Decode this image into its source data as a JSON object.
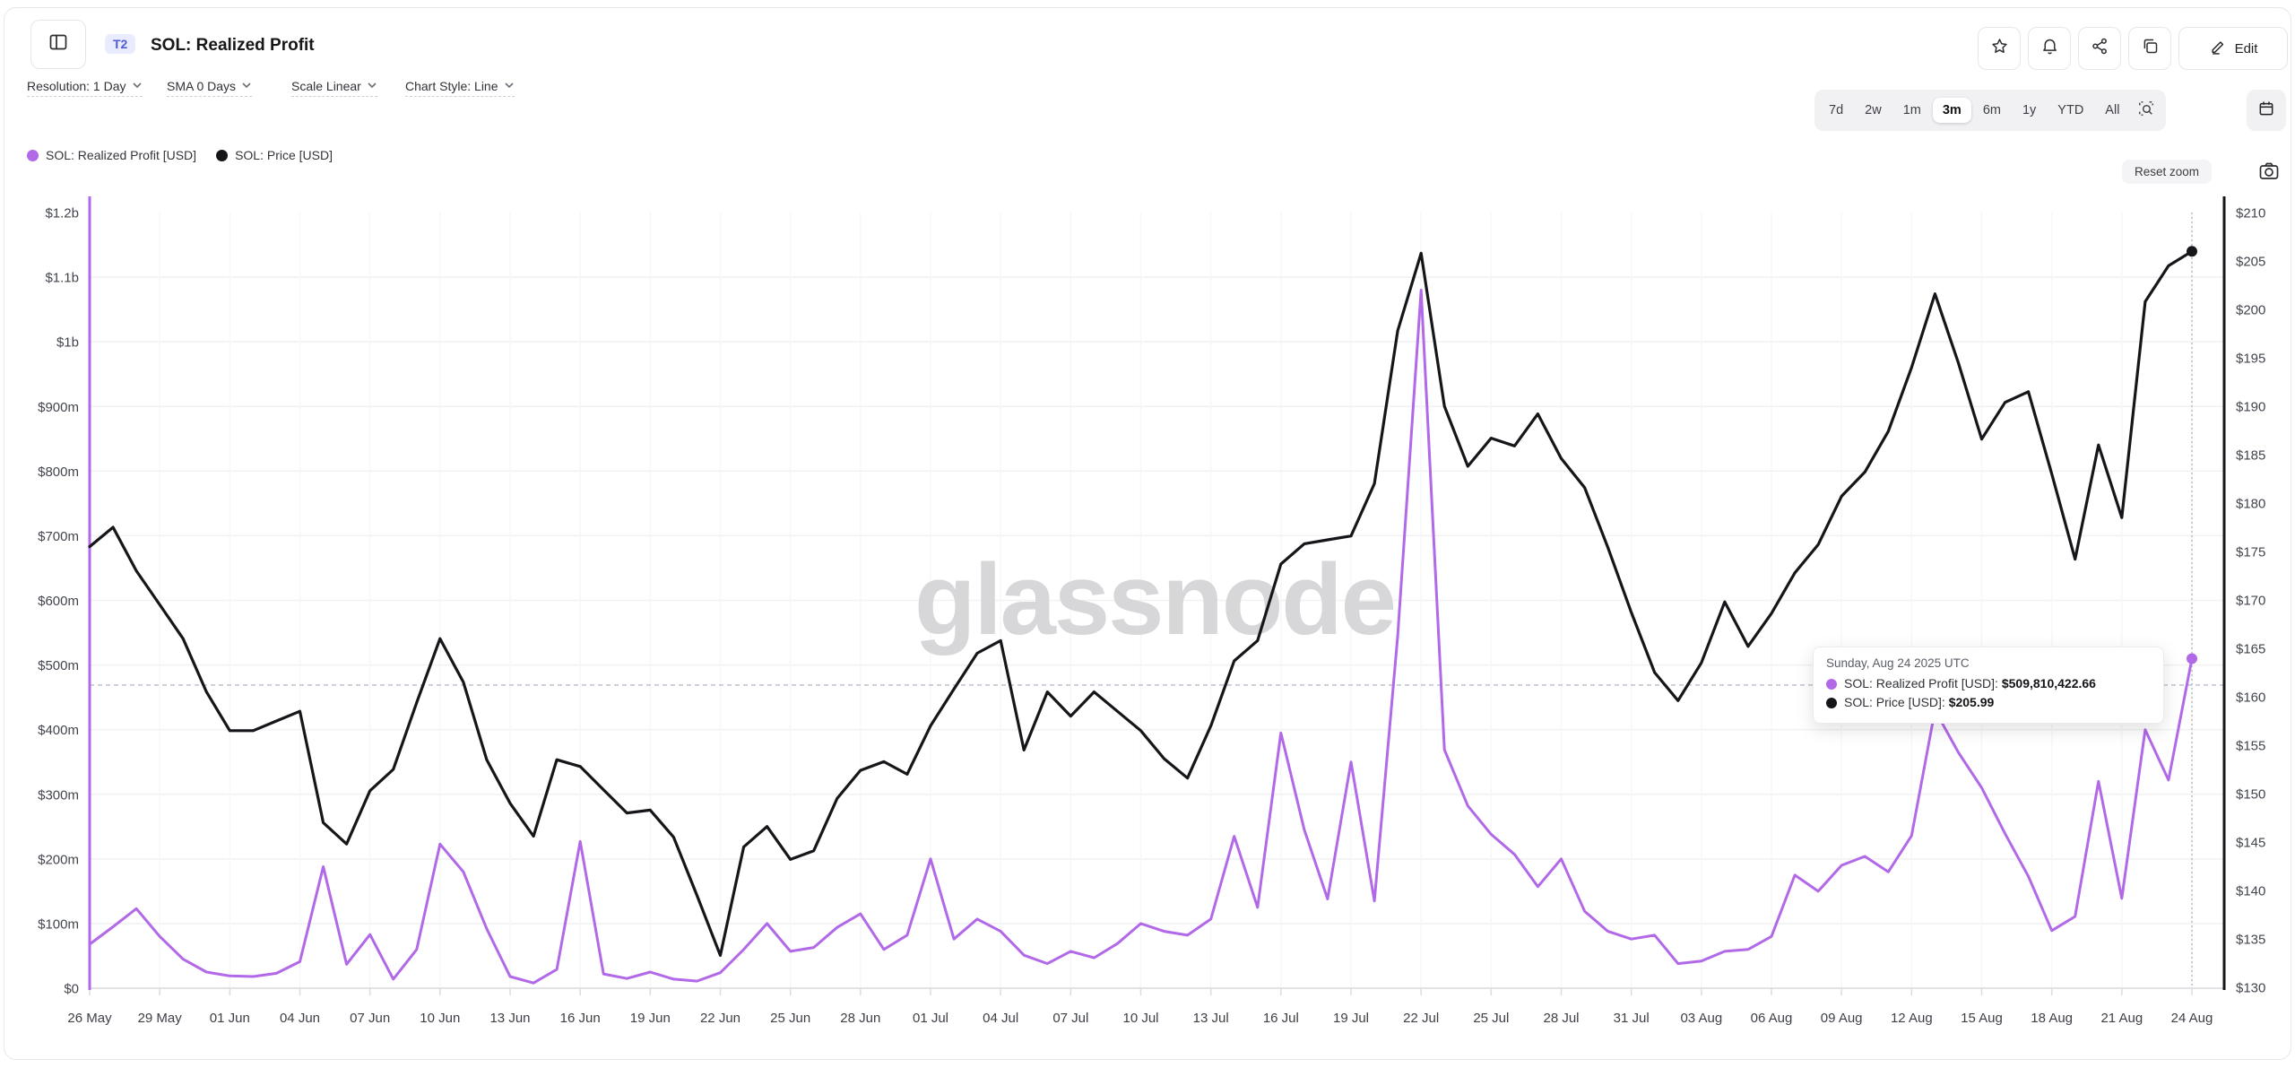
{
  "header": {
    "badge": "T2",
    "title": "SOL: Realized Profit",
    "edit_label": "Edit"
  },
  "controls": {
    "resolution": "Resolution: 1 Day",
    "sma": "SMA 0 Days",
    "scale": "Scale Linear",
    "chart_style": "Chart Style: Line"
  },
  "ranges": {
    "options": [
      "7d",
      "2w",
      "1m",
      "3m",
      "6m",
      "1y",
      "YTD",
      "All"
    ],
    "active": "3m"
  },
  "reset_zoom_label": "Reset zoom",
  "legend": [
    {
      "label": "SOL: Realized Profit [USD]",
      "color": "#b169e8"
    },
    {
      "label": "SOL: Price [USD]",
      "color": "#16161a"
    }
  ],
  "tooltip": {
    "date": "Sunday, Aug 24 2025 UTC",
    "rows": [
      {
        "label": "SOL: Realized Profit [USD]:",
        "value": "$509,810,422.66",
        "color": "#b169e8"
      },
      {
        "label": "SOL: Price [USD]:",
        "value": "$205.99",
        "color": "#16161a"
      }
    ]
  },
  "chart_data": {
    "type": "line",
    "title": "SOL: Realized Profit",
    "x_tick_interval_days": 3,
    "x_tick_labels": [
      "26 May",
      "29 May",
      "01 Jun",
      "04 Jun",
      "07 Jun",
      "10 Jun",
      "13 Jun",
      "16 Jun",
      "19 Jun",
      "22 Jun",
      "25 Jun",
      "28 Jun",
      "01 Jul",
      "04 Jul",
      "07 Jul",
      "10 Jul",
      "13 Jul",
      "16 Jul",
      "19 Jul",
      "22 Jul",
      "25 Jul",
      "28 Jul",
      "31 Jul",
      "03 Aug",
      "06 Aug",
      "09 Aug",
      "12 Aug",
      "15 Aug",
      "18 Aug",
      "21 Aug",
      "24 Aug"
    ],
    "y_left": {
      "label": "SOL: Realized Profit [USD]",
      "tick_labels": [
        "$1.2b",
        "$1.1b",
        "$1b",
        "$900m",
        "$800m",
        "$700m",
        "$600m",
        "$500m",
        "$400m",
        "$300m",
        "$200m",
        "$100m",
        "$0"
      ],
      "min_m": 0,
      "max_m": 1200
    },
    "y_right": {
      "label": "SOL: Price [USD]",
      "tick_labels": [
        "$210",
        "$205",
        "$200",
        "$195",
        "$190",
        "$185",
        "$180",
        "$175",
        "$170",
        "$165",
        "$160",
        "$155",
        "$150",
        "$145",
        "$140",
        "$135",
        "$130"
      ],
      "min": 130,
      "max": 210
    },
    "series": [
      {
        "name": "SOL: Realized Profit [USD]",
        "axis": "left",
        "color": "#b169e8",
        "unit": "USD millions",
        "values": [
          68,
          95,
          123,
          80,
          45,
          25,
          19,
          18,
          23,
          41,
          188,
          37,
          83,
          14,
          60,
          223,
          180,
          92,
          18,
          8,
          29,
          227,
          22,
          15,
          25,
          14,
          11,
          24,
          60,
          100,
          57,
          63,
          94,
          115,
          60,
          82,
          200,
          76,
          107,
          88,
          51,
          38,
          57,
          47,
          69,
          100,
          88,
          82,
          107,
          235,
          125,
          395,
          245,
          138,
          350,
          135,
          545,
          1080,
          369,
          282,
          238,
          207,
          157,
          200,
          119,
          88,
          76,
          82,
          38,
          42,
          57,
          60,
          80,
          175,
          150,
          190,
          204,
          180,
          236,
          430,
          365,
          310,
          239,
          173,
          89,
          111,
          320,
          139,
          400,
          322,
          509.81
        ]
      },
      {
        "name": "SOL: Price [USD]",
        "axis": "right",
        "color": "#16161a",
        "unit": "USD",
        "values": [
          175.5,
          177.5,
          173,
          169.5,
          166,
          160.5,
          156.5,
          156.5,
          157.5,
          158.5,
          147,
          144.8,
          150.3,
          152.5,
          159.4,
          166,
          161.5,
          153.5,
          149,
          145.6,
          153.5,
          152.8,
          150.4,
          148,
          148.3,
          145.5,
          139.5,
          133.3,
          144.5,
          146.6,
          143.2,
          144.1,
          149.5,
          152.4,
          153.3,
          152,
          157,
          160.8,
          164.5,
          165.8,
          154.5,
          160.5,
          158,
          160.5,
          158.5,
          156.5,
          153.6,
          151.6,
          157,
          163.7,
          165.8,
          173.7,
          175.8,
          176.2,
          176.6,
          182,
          197.8,
          205.8,
          190,
          183.8,
          186.7,
          185.9,
          189.2,
          184.6,
          181.6,
          175.4,
          168.7,
          162.5,
          159.6,
          163.5,
          169.8,
          165.2,
          168.6,
          172.8,
          175.7,
          180.7,
          183.2,
          187.4,
          194,
          201.6,
          194.5,
          186.6,
          190.4,
          191.5,
          183,
          174.2,
          186,
          178.5,
          200.8,
          204.5,
          205.99
        ]
      }
    ],
    "layout": {
      "grid": true,
      "legend_position": "top-left",
      "watermark": "glassnode",
      "crosshair": {
        "x_index": 90,
        "left_axis_value_m": 469
      },
      "last_point_markers": true
    }
  }
}
